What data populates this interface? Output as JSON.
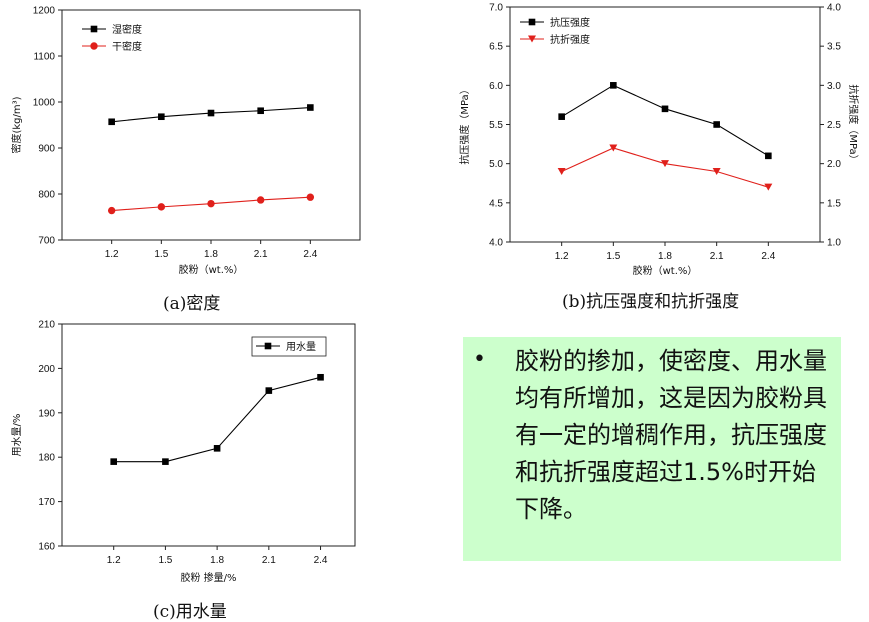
{
  "chart_data": [
    {
      "type": "line",
      "caption": "(a)密度",
      "xlabel": "胶粉（wt.%）",
      "ylabel": "密度(kg/m³)",
      "x": [
        1.2,
        1.5,
        1.8,
        2.1,
        2.4
      ],
      "x_ticks": [
        "1.2",
        "1.5",
        "1.8",
        "2.1",
        "2.4"
      ],
      "xlim": [
        0.9,
        2.7
      ],
      "ylim": [
        700,
        1200
      ],
      "y_ticks": [
        "700",
        "800",
        "900",
        "1000",
        "1100",
        "1200"
      ],
      "legend_position": "top-left",
      "series": [
        {
          "name": "湿密度",
          "color": "#000000",
          "marker": "square",
          "values": [
            957,
            968,
            976,
            981,
            988
          ]
        },
        {
          "name": "干密度",
          "color": "#e0201b",
          "marker": "circle",
          "values": [
            764,
            772,
            779,
            787,
            793
          ]
        }
      ]
    },
    {
      "type": "line",
      "caption": "(b)抗压强度和抗折强度",
      "xlabel": "胶粉（wt.%）",
      "ylabel": "抗压强度（MPa）",
      "ylabel_right": "抗折强度（MPa）",
      "x": [
        1.2,
        1.5,
        1.8,
        2.1,
        2.4
      ],
      "x_ticks": [
        "1.2",
        "1.5",
        "1.8",
        "2.1",
        "2.4"
      ],
      "xlim": [
        0.9,
        2.7
      ],
      "ylim": [
        4.0,
        7.0
      ],
      "y_ticks": [
        "4.0",
        "4.5",
        "5.0",
        "5.5",
        "6.0",
        "6.5",
        "7.0"
      ],
      "ylim_right": [
        1.0,
        4.0
      ],
      "y_ticks_right": [
        "1.0",
        "1.5",
        "2.0",
        "2.5",
        "3.0",
        "3.5",
        "4.0"
      ],
      "legend_position": "top-left",
      "series": [
        {
          "name": "抗压强度",
          "axis": "left",
          "color": "#000000",
          "marker": "square",
          "values": [
            5.6,
            6.0,
            5.7,
            5.5,
            5.1
          ]
        },
        {
          "name": "抗折强度",
          "axis": "right",
          "color": "#e0201b",
          "marker": "triangle-down",
          "values": [
            1.9,
            2.2,
            2.0,
            1.9,
            1.7
          ]
        }
      ]
    },
    {
      "type": "line",
      "caption": "(c)用水量",
      "xlabel": "胶粉 掺量/%",
      "ylabel": "用水量/%",
      "x": [
        1.2,
        1.5,
        1.8,
        2.1,
        2.4
      ],
      "x_ticks": [
        "1.2",
        "1.5",
        "1.8",
        "2.1",
        "2.4"
      ],
      "xlim": [
        0.9,
        2.6
      ],
      "ylim": [
        160,
        210
      ],
      "y_ticks": [
        "160",
        "170",
        "180",
        "190",
        "200",
        "210"
      ],
      "legend_position": "top-right",
      "series": [
        {
          "name": "用水量",
          "color": "#000000",
          "marker": "square",
          "values": [
            179,
            179,
            182,
            195,
            198
          ]
        }
      ]
    }
  ],
  "note": {
    "bullet": "•",
    "text": "胶粉的掺加，使密度、用水量均有所增加，这是因为胶粉具有一定的增稠作用，抗压强度和抗折强度超过1.5%时开始下降。"
  }
}
